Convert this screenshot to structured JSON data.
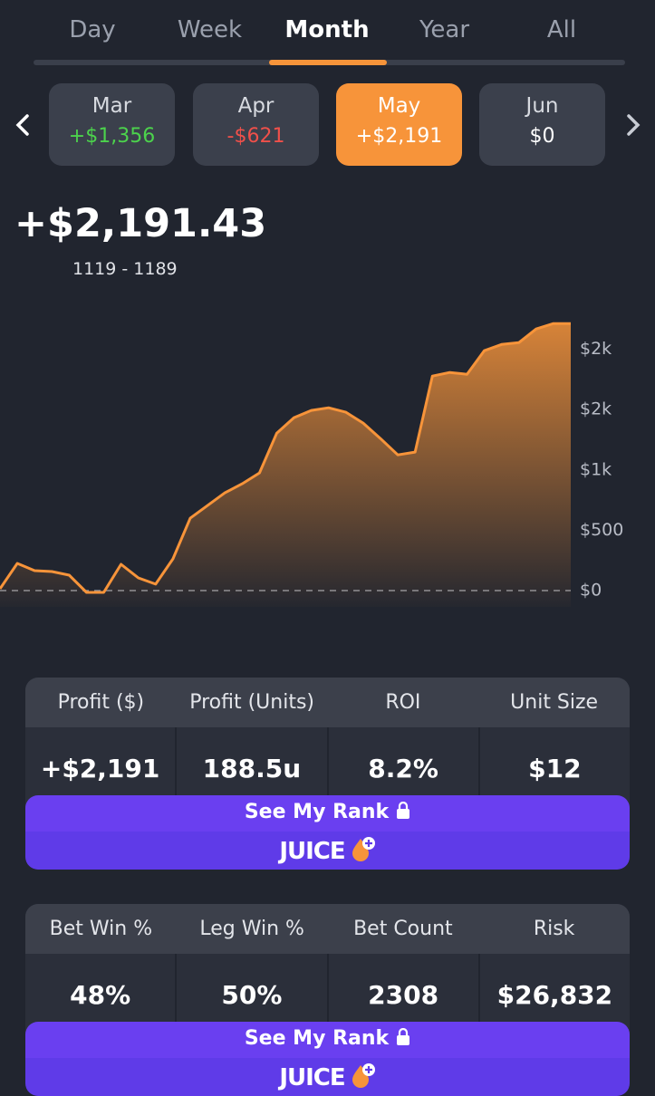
{
  "tabs": [
    "Day",
    "Week",
    "Month",
    "Year",
    "All"
  ],
  "months": [
    {
      "name": "Mar",
      "amount": "+$1,356"
    },
    {
      "name": "Apr",
      "amount": "-$621"
    },
    {
      "name": "May",
      "amount": "+$2,191"
    },
    {
      "name": "Jun",
      "amount": "$0"
    }
  ],
  "summary": {
    "total": "+$2,191.43",
    "range": "1119 - 1189"
  },
  "chart_data": {
    "type": "line",
    "color": "#f7943a",
    "values": [
      15,
      225,
      165,
      158,
      128,
      -15,
      -15,
      218,
      105,
      53,
      263,
      600,
      705,
      810,
      885,
      975,
      1305,
      1433,
      1493,
      1515,
      1478,
      1388,
      1260,
      1125,
      1148,
      1778,
      1808,
      1793,
      1988,
      2040,
      2055,
      2168,
      2213,
      2213
    ],
    "ylim": [
      -30,
      2350
    ],
    "yticks": [
      {
        "value": 0,
        "label": "$0"
      },
      {
        "value": 500,
        "label": "$500"
      },
      {
        "value": 1000,
        "label": "$1k"
      },
      {
        "value": 1500,
        "label": "$2k"
      },
      {
        "value": 2000,
        "label": "$2k"
      }
    ]
  },
  "cards": [
    {
      "headers": [
        "Profit ($)",
        "Profit (Units)",
        "ROI",
        "Unit Size"
      ],
      "values": [
        "+$2,191",
        "188.5u",
        "8.2%",
        "$12"
      ],
      "button": "See My Rank",
      "brand": "JUICE"
    },
    {
      "headers": [
        "Bet Win %",
        "Leg Win %",
        "Bet Count",
        "Risk"
      ],
      "values": [
        "48%",
        "50%",
        "2308",
        "$26,832"
      ],
      "button": "See My Rank",
      "brand": "JUICE"
    }
  ]
}
